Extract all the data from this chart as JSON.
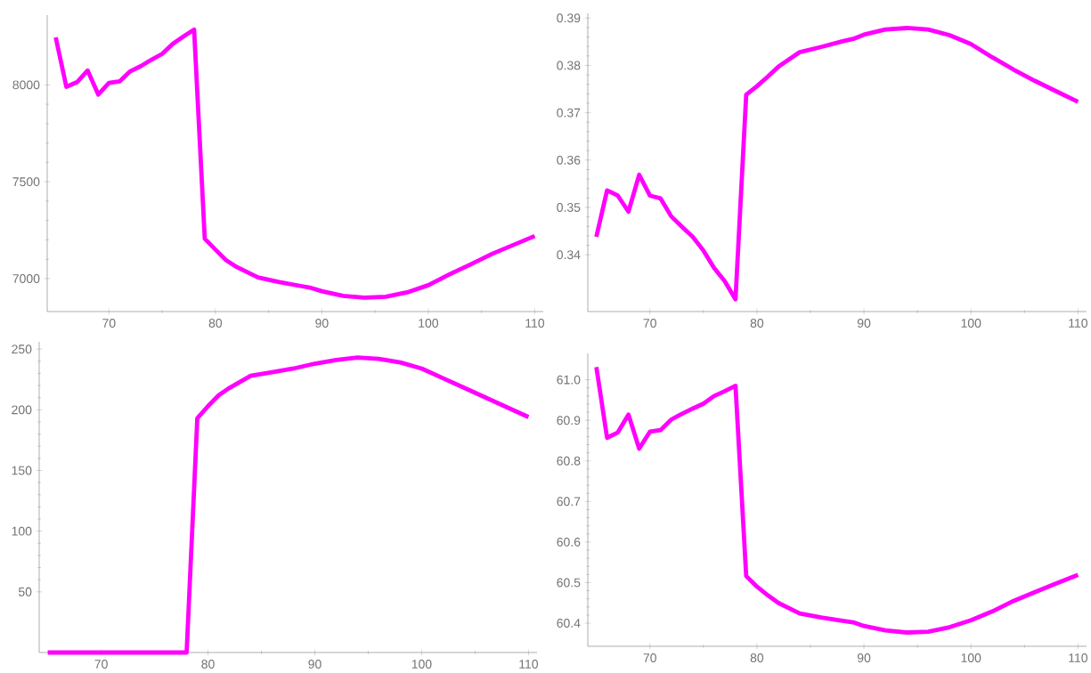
{
  "chart_data": [
    {
      "type": "line",
      "color": "#ff00ff",
      "xlim": [
        64.2,
        110.8
      ],
      "ylim": [
        6830,
        8360
      ],
      "xticks": [
        70,
        80,
        90,
        100,
        110
      ],
      "yticks": [
        7000,
        7500,
        8000
      ],
      "x": [
        65,
        66,
        67,
        68,
        69,
        70,
        71,
        72,
        73,
        74,
        75,
        76,
        77,
        78,
        79,
        80,
        81,
        82,
        84,
        86,
        88,
        89,
        90,
        92,
        94,
        96,
        98,
        100,
        102,
        104,
        106,
        108,
        110
      ],
      "values": [
        8245,
        7990,
        8014,
        8074,
        7950,
        8010,
        8018,
        8070,
        8097,
        8130,
        8160,
        8212,
        8250,
        8285,
        7206,
        7150,
        7095,
        7060,
        7006,
        6982,
        6962,
        6952,
        6935,
        6911,
        6902,
        6906,
        6929,
        6966,
        7022,
        7074,
        7128,
        7174,
        7220
      ]
    },
    {
      "type": "line",
      "color": "#ff00ff",
      "xlim": [
        64.2,
        110.8
      ],
      "ylim": [
        0.328,
        0.391
      ],
      "xticks": [
        70,
        80,
        90,
        100,
        110
      ],
      "yticks": [
        0.34,
        0.35,
        0.36,
        0.37,
        0.38,
        0.39
      ],
      "x": [
        65,
        66,
        67,
        68,
        69,
        70,
        71,
        72,
        73,
        74,
        75,
        76,
        77,
        78,
        79,
        80,
        81,
        82,
        84,
        86,
        88,
        89,
        90,
        92,
        94,
        96,
        98,
        100,
        102,
        104,
        106,
        108,
        110
      ],
      "values": [
        0.3438,
        0.3536,
        0.3525,
        0.3491,
        0.3569,
        0.3525,
        0.3519,
        0.3481,
        0.3459,
        0.3438,
        0.3409,
        0.3372,
        0.3344,
        0.3306,
        0.3738,
        0.3756,
        0.3776,
        0.3797,
        0.3828,
        0.3839,
        0.3851,
        0.3856,
        0.3865,
        0.3876,
        0.3879,
        0.3876,
        0.3864,
        0.3845,
        0.3817,
        0.3791,
        0.3767,
        0.3745,
        0.3723
      ]
    },
    {
      "type": "line",
      "color": "#ff00ff",
      "xlim": [
        64.2,
        110.8
      ],
      "ylim": [
        0,
        256
      ],
      "xticks": [
        70,
        80,
        90,
        100,
        110
      ],
      "yticks": [
        50,
        100,
        150,
        200,
        250
      ],
      "x": [
        65,
        66,
        67,
        68,
        69,
        70,
        71,
        72,
        73,
        74,
        75,
        76,
        77,
        78,
        79,
        80,
        81,
        82,
        84,
        86,
        88,
        89,
        90,
        92,
        94,
        96,
        98,
        100,
        102,
        104,
        106,
        108,
        110
      ],
      "values": [
        0,
        0,
        0,
        0,
        0,
        0,
        0,
        0,
        0,
        0,
        0,
        0,
        0,
        0,
        193,
        203,
        212,
        218,
        228,
        231,
        234,
        236,
        238,
        241,
        243,
        242,
        239,
        234,
        226,
        218,
        210,
        202,
        194
      ]
    },
    {
      "type": "line",
      "color": "#ff00ff",
      "xlim": [
        64.2,
        110.8
      ],
      "ylim": [
        60.343,
        61.065
      ],
      "xticks": [
        70,
        80,
        90,
        100,
        110
      ],
      "yticks": [
        {
          "value": 60.4,
          "label": "60.4"
        },
        {
          "value": 60.5,
          "label": "60.5"
        },
        {
          "value": 60.6,
          "label": "60.6"
        },
        {
          "value": 60.7,
          "label": "60.7"
        },
        {
          "value": 60.8,
          "label": "60.8"
        },
        {
          "value": 60.9,
          "label": "60.9"
        },
        {
          "value": 61.0,
          "label": "61.0"
        }
      ],
      "x": [
        65,
        66,
        67,
        68,
        69,
        70,
        71,
        72,
        73,
        74,
        75,
        76,
        77,
        78,
        79,
        80,
        81,
        82,
        84,
        86,
        88,
        89,
        90,
        92,
        94,
        96,
        98,
        100,
        102,
        104,
        106,
        108,
        110
      ],
      "values": [
        61.031,
        60.857,
        60.87,
        60.914,
        60.83,
        60.872,
        60.876,
        60.902,
        60.916,
        60.929,
        60.941,
        60.96,
        60.972,
        60.985,
        60.516,
        60.49,
        60.469,
        60.45,
        60.424,
        60.414,
        60.406,
        60.402,
        60.393,
        60.382,
        60.377,
        60.379,
        60.39,
        60.407,
        60.429,
        60.455,
        60.477,
        60.498,
        60.519
      ]
    }
  ]
}
